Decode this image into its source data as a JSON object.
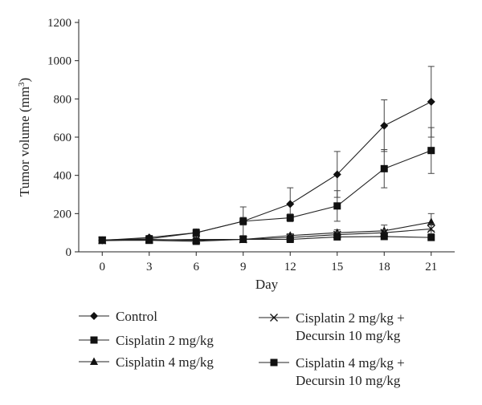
{
  "chart_data": {
    "type": "line",
    "xlabel": "Day",
    "ylabel": "Tumor volume (mm",
    "ylabel_sup": "3",
    "ylabel_close": ")",
    "x": [
      0,
      3,
      6,
      9,
      12,
      15,
      18,
      21
    ],
    "x_ticks": [
      "0",
      "3",
      "6",
      "9",
      "12",
      "15",
      "18",
      "21"
    ],
    "y_ticks": [
      "0",
      "200",
      "400",
      "600",
      "800",
      "1000",
      "1200"
    ],
    "ylim": [
      0,
      1200
    ],
    "grid": false,
    "legend_position": "bottom",
    "series": [
      {
        "name": "Control",
        "marker": "diamond",
        "values": [
          60,
          75,
          100,
          160,
          250,
          405,
          660,
          785
        ],
        "errors": [
          8,
          10,
          20,
          75,
          85,
          120,
          135,
          185
        ]
      },
      {
        "name": "Cisplatin 2 mg/kg",
        "marker": "square",
        "values": [
          62,
          68,
          100,
          160,
          178,
          240,
          435,
          530
        ],
        "errors": [
          8,
          8,
          15,
          20,
          20,
          80,
          100,
          120
        ]
      },
      {
        "name": "Cisplatin 4 mg/kg",
        "marker": "triangle",
        "values": [
          58,
          65,
          60,
          65,
          85,
          100,
          110,
          155
        ],
        "errors": [
          6,
          8,
          8,
          8,
          10,
          15,
          30,
          45
        ]
      },
      {
        "name": "Cisplatin 2 mg/kg + Decursin 10 mg/kg",
        "name_lines": [
          "Cisplatin 2 mg/kg +",
          "Decursin 10 mg/kg"
        ],
        "marker": "x",
        "values": [
          60,
          62,
          65,
          65,
          75,
          90,
          100,
          120
        ],
        "errors": [
          6,
          6,
          6,
          6,
          8,
          15,
          15,
          25
        ]
      },
      {
        "name": "Cisplatin 4 mg/kg + Decursin 10 mg/kg",
        "name_lines": [
          "Cisplatin 4 mg/kg +",
          "Decursin 10 mg/kg"
        ],
        "marker": "square",
        "values": [
          60,
          60,
          55,
          65,
          65,
          78,
          80,
          75
        ],
        "errors": [
          5,
          5,
          5,
          5,
          8,
          10,
          12,
          10
        ]
      }
    ]
  }
}
